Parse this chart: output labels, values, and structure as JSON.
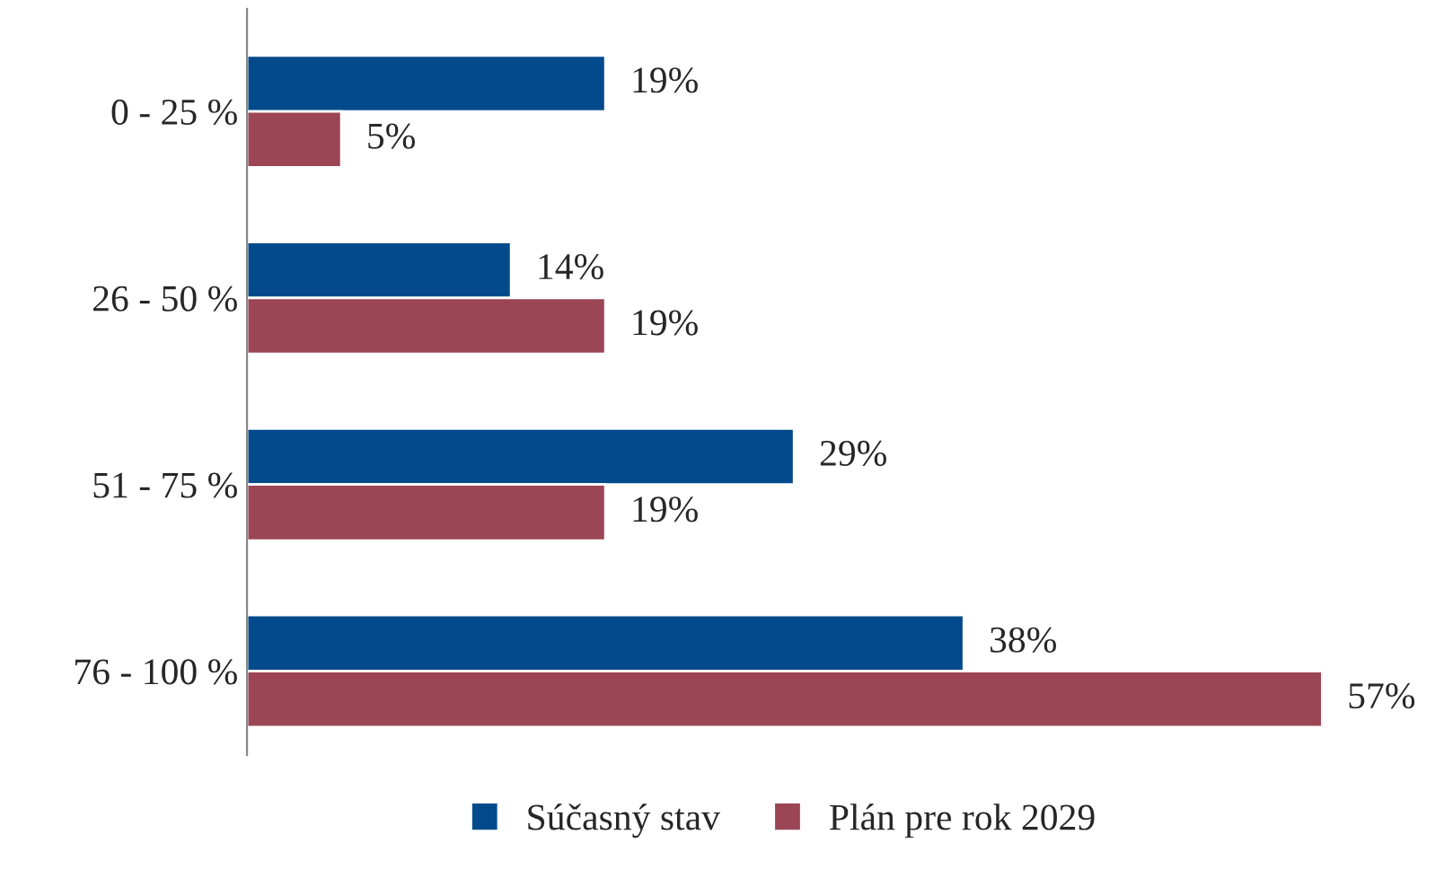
{
  "chart_data": {
    "type": "bar",
    "orientation": "horizontal",
    "categories": [
      "0 - 25 %",
      "26 - 50 %",
      "51 - 75 %",
      "76 - 100 %"
    ],
    "series": [
      {
        "name": "Súčasný stav",
        "color": "#034a8c",
        "values": [
          19,
          14,
          29,
          38
        ],
        "value_labels": [
          "19%",
          "14%",
          "29%",
          "38%"
        ]
      },
      {
        "name": "Plán pre rok 2029",
        "color": "#9b4555",
        "values": [
          5,
          19,
          19,
          57
        ],
        "value_labels": [
          "5%",
          "19%",
          "19%",
          "57%"
        ]
      }
    ],
    "legend": "bottom",
    "tick_labels": "y"
  }
}
